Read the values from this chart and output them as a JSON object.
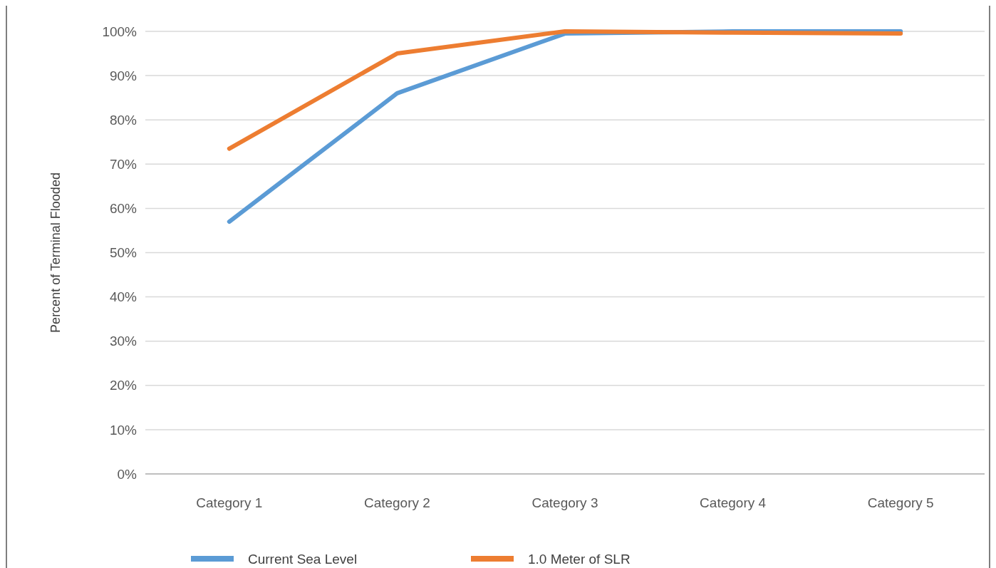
{
  "chart_data": {
    "type": "line",
    "ylabel": "Percent of Terminal Flooded",
    "categories": [
      "Category 1",
      "Category 2",
      "Category 3",
      "Category 4",
      "Category 5"
    ],
    "series": [
      {
        "name": "Current Sea Level",
        "color": "#5b9bd5",
        "values": [
          57,
          86,
          99.5,
          100,
          100
        ]
      },
      {
        "name": "1.0 Meter of SLR",
        "color": "#ed7d31",
        "values": [
          73.5,
          95,
          100,
          99.7,
          99.5
        ]
      }
    ],
    "ylim": [
      0,
      100
    ],
    "yticks": [
      {
        "value": 0,
        "label": "0%"
      },
      {
        "value": 10,
        "label": "10%"
      },
      {
        "value": 20,
        "label": "20%"
      },
      {
        "value": 30,
        "label": "30%"
      },
      {
        "value": 40,
        "label": "40%"
      },
      {
        "value": 50,
        "label": "50%"
      },
      {
        "value": 60,
        "label": "60%"
      },
      {
        "value": 70,
        "label": "70%"
      },
      {
        "value": 80,
        "label": "80%"
      },
      {
        "value": 90,
        "label": "90%"
      },
      {
        "value": 100,
        "label": "100%"
      }
    ],
    "grid": "y",
    "legend": "bottom",
    "marker": "none",
    "line_style": "solid"
  }
}
